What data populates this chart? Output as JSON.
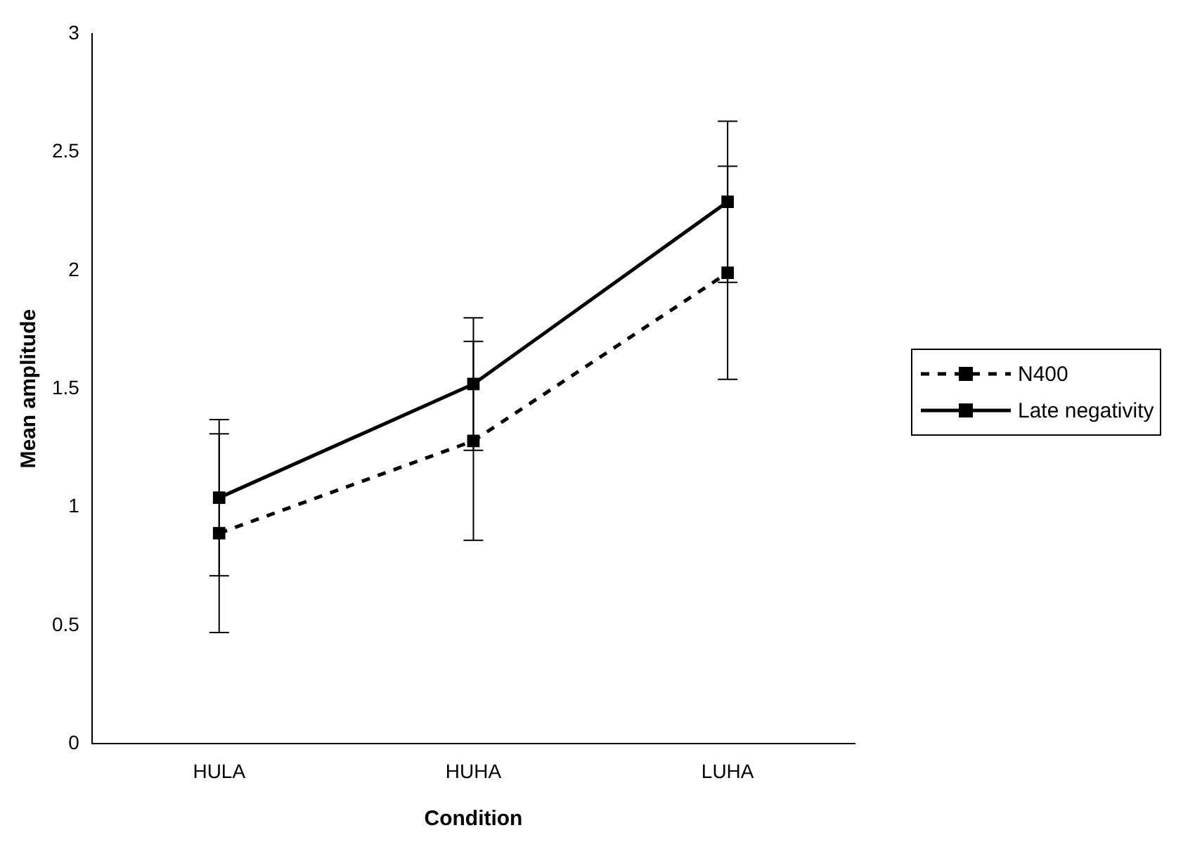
{
  "chart_data": {
    "type": "line",
    "xlabel": "Condition",
    "ylabel": "Mean amplitude",
    "categories": [
      "HULA",
      "HUHA",
      "LUHA"
    ],
    "series": [
      {
        "name": "N400",
        "color": "#000000",
        "line_style": "dashed",
        "values": [
          0.89,
          1.28,
          1.99
        ],
        "errors": [
          0.42,
          0.42,
          0.45
        ]
      },
      {
        "name": "Late negativity",
        "color": "#000000",
        "line_style": "solid",
        "values": [
          1.04,
          1.52,
          2.29
        ],
        "errors": [
          0.33,
          0.28,
          0.34
        ]
      }
    ],
    "ylim": [
      0,
      3
    ],
    "yticks": [
      0,
      0.5,
      1,
      1.5,
      2,
      2.5,
      3
    ],
    "grid": false,
    "legend": "right",
    "marker": "square"
  }
}
